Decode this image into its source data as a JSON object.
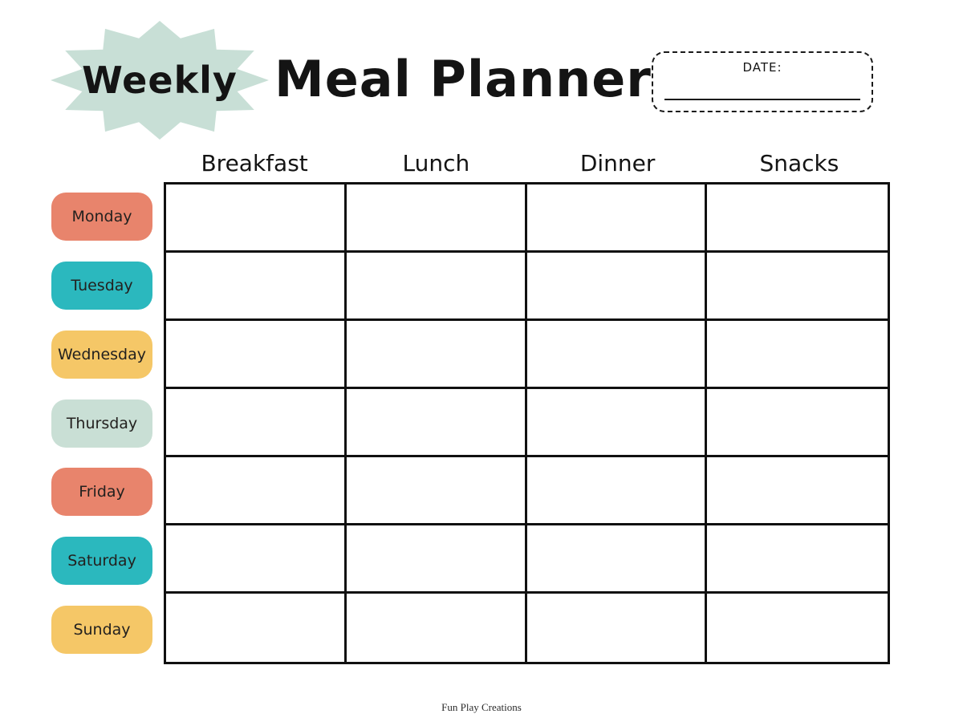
{
  "page": {
    "badge_label": "Weekly",
    "title": "Meal Planner",
    "footer": "Fun Play Creations"
  },
  "date_box": {
    "label": "DATE:",
    "value": ""
  },
  "meals": [
    {
      "label": "Breakfast"
    },
    {
      "label": "Lunch"
    },
    {
      "label": "Dinner"
    },
    {
      "label": "Snacks"
    }
  ],
  "days": [
    {
      "label": "Monday",
      "color": "#E8846C"
    },
    {
      "label": "Tuesday",
      "color": "#2BB8BE"
    },
    {
      "label": "Wednesday",
      "color": "#F5C767"
    },
    {
      "label": "Thursday",
      "color": "#C9DFD5"
    },
    {
      "label": "Friday",
      "color": "#E8846C"
    },
    {
      "label": "Saturday",
      "color": "#2BB8BE"
    },
    {
      "label": "Sunday",
      "color": "#F5C767"
    }
  ],
  "colors": {
    "starburst": "#C8DFD6",
    "ink": "#141414",
    "grid_line": "#101010"
  }
}
